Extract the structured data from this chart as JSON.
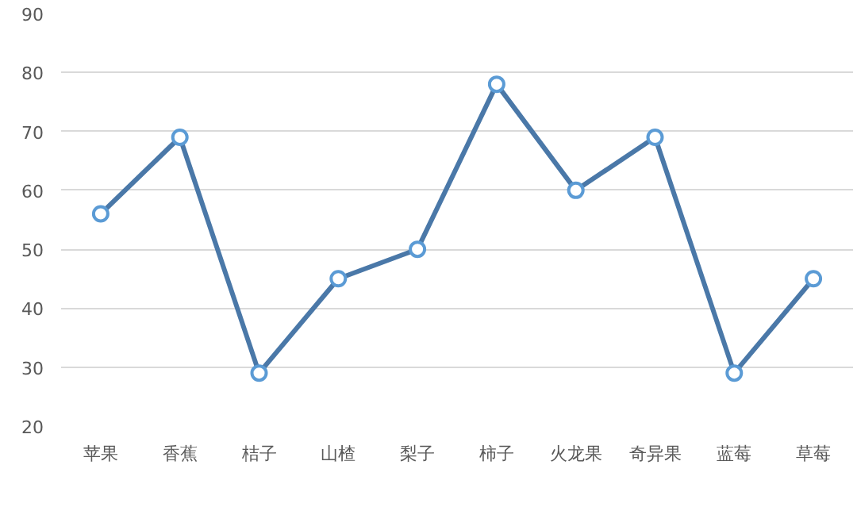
{
  "chart_data": {
    "type": "line",
    "categories": [
      "苹果",
      "香蕉",
      "桔子",
      "山楂",
      "梨子",
      "柿子",
      "火龙果",
      "奇异果",
      "蓝莓",
      "草莓"
    ],
    "series": [
      {
        "color": "#4a78a8",
        "values": [
          56,
          69,
          29,
          45,
          50,
          78,
          60,
          69,
          29,
          45
        ]
      }
    ],
    "ylim": [
      20,
      90
    ],
    "yticks": [
      20,
      30,
      40,
      50,
      60,
      70,
      80,
      90
    ],
    "grid": "y",
    "marker": "circle",
    "line_style": "solid"
  }
}
